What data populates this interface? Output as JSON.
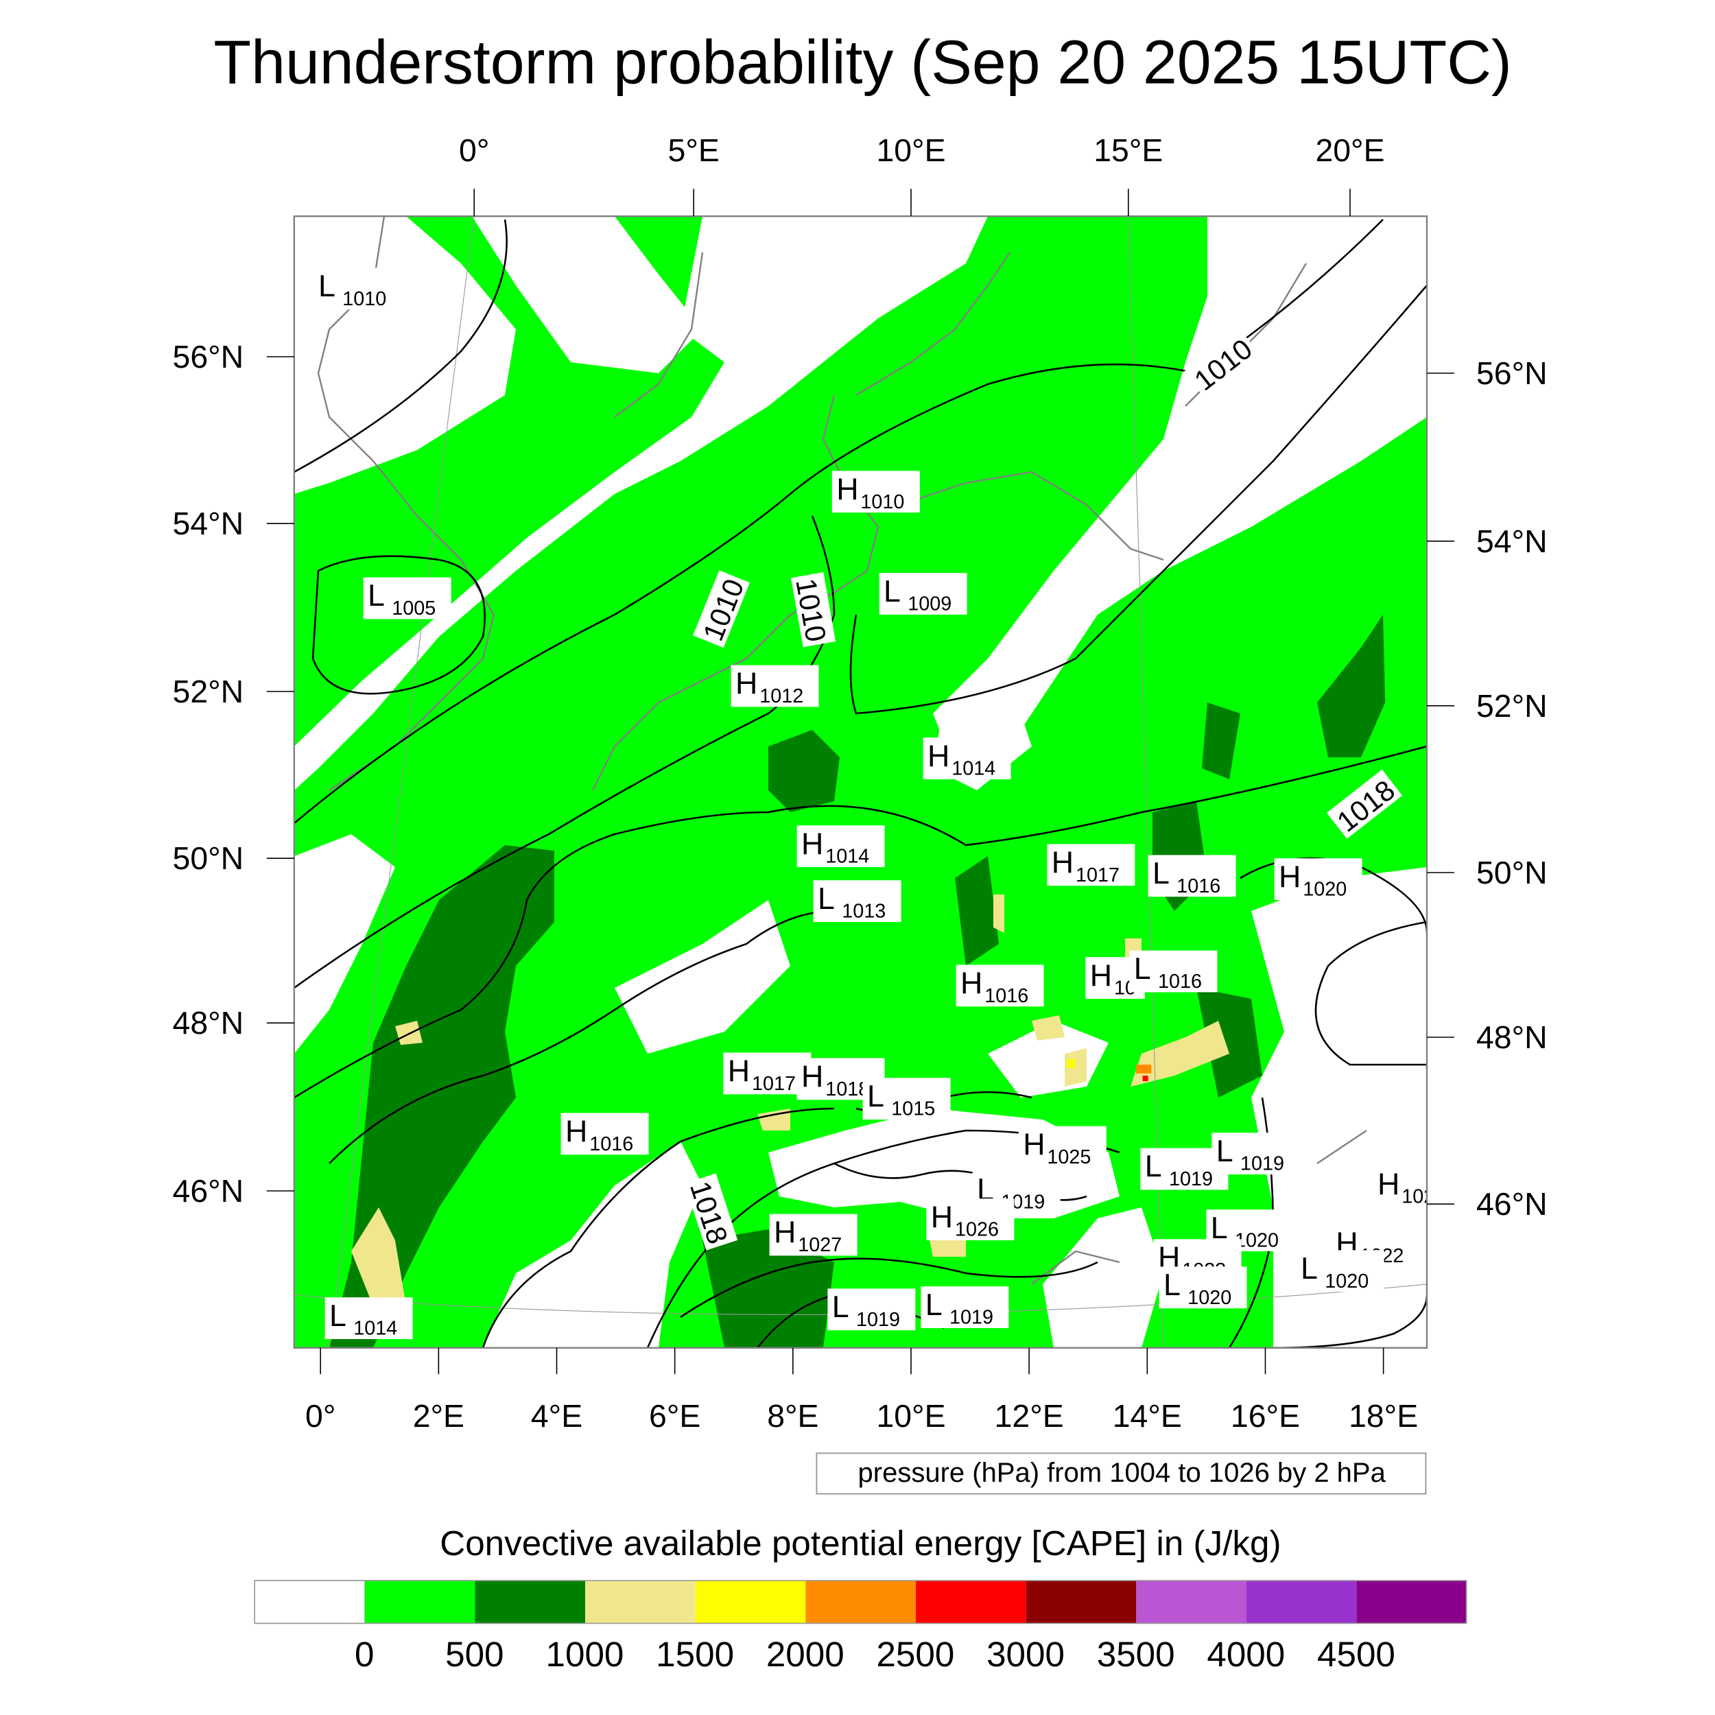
{
  "title": "Thunderstorm probability (Sep 20 2025 15UTC)",
  "top_lon_labels": [
    "0°",
    "5°E",
    "10°E",
    "15°E",
    "20°E"
  ],
  "bottom_lon_labels": [
    "0°",
    "2°E",
    "4°E",
    "6°E",
    "8°E",
    "10°E",
    "12°E",
    "14°E",
    "16°E",
    "18°E"
  ],
  "left_lat_labels": [
    "56°N",
    "54°N",
    "52°N",
    "50°N",
    "48°N",
    "46°N"
  ],
  "right_lat_labels": [
    "56°N",
    "54°N",
    "52°N",
    "50°N",
    "48°N",
    "46°N"
  ],
  "contour_info": "pressure (hPa) from 1004 to 1026 by 2 hPa",
  "contour_labels": [
    "1010",
    "1010",
    "1010",
    "1018",
    "1018"
  ],
  "pressure_centers": [
    {
      "type": "L",
      "value": "1010"
    },
    {
      "type": "L",
      "value": "1005"
    },
    {
      "type": "H",
      "value": "1010"
    },
    {
      "type": "L",
      "value": "1009"
    },
    {
      "type": "H",
      "value": "1012"
    },
    {
      "type": "H",
      "value": "1014"
    },
    {
      "type": "H",
      "value": "1014"
    },
    {
      "type": "L",
      "value": "1013"
    },
    {
      "type": "H",
      "value": "1017"
    },
    {
      "type": "L",
      "value": "1016"
    },
    {
      "type": "H",
      "value": "1020"
    },
    {
      "type": "H",
      "value": "1016"
    },
    {
      "type": "H",
      "value": "10"
    },
    {
      "type": "L",
      "value": "1016"
    },
    {
      "type": "H",
      "value": "1017"
    },
    {
      "type": "H",
      "value": "1018"
    },
    {
      "type": "L",
      "value": "1015"
    },
    {
      "type": "H",
      "value": "1016"
    },
    {
      "type": "H",
      "value": "1025"
    },
    {
      "type": "L",
      "value": "1019"
    },
    {
      "type": "L",
      "value": "1019"
    },
    {
      "type": "H",
      "value": "102"
    },
    {
      "type": "L",
      "value": "1019"
    },
    {
      "type": "H",
      "value": "1026"
    },
    {
      "type": "H",
      "value": "1027"
    },
    {
      "type": "L",
      "value": "1020"
    },
    {
      "type": "H",
      "value": "1022"
    },
    {
      "type": "L",
      "value": "1020"
    },
    {
      "type": "H",
      "value": "1023"
    },
    {
      "type": "L",
      "value": "1020"
    },
    {
      "type": "L",
      "value": "1019"
    },
    {
      "type": "L",
      "value": "1019"
    },
    {
      "type": "L",
      "value": "1014"
    }
  ],
  "colorbar": {
    "title": "Convective available potential energy [CAPE] in (J/kg)",
    "colors": [
      "#ffffff",
      "#00ff00",
      "#008000",
      "#f0e68c",
      "#ffff00",
      "#ff8c00",
      "#ff0000",
      "#8b0000",
      "#ba55d3",
      "#9932cc",
      "#8b008b"
    ],
    "tick_labels": [
      "0",
      "500",
      "1000",
      "1500",
      "2000",
      "2500",
      "3000",
      "3500",
      "4000",
      "4500"
    ]
  }
}
